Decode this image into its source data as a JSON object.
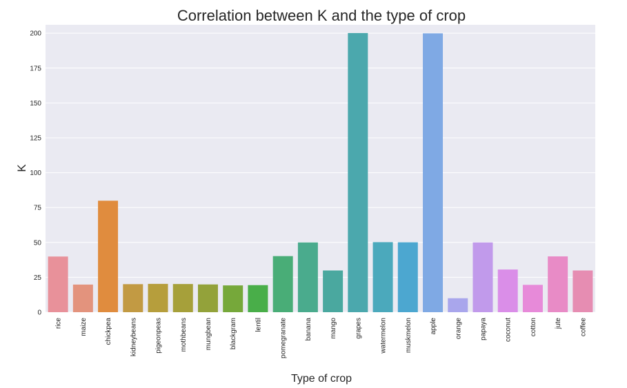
{
  "chart_data": {
    "type": "bar",
    "title": "Correlation between K and the type of crop",
    "xlabel": "Type of crop",
    "ylabel": "K",
    "ylim": [
      0,
      206
    ],
    "yticks": [
      0,
      25,
      50,
      75,
      100,
      125,
      150,
      175,
      200
    ],
    "grid": true,
    "categories": [
      "rice",
      "maize",
      "chickpea",
      "kidneybeans",
      "pigeonpeas",
      "mothbeans",
      "mungbean",
      "blackgram",
      "lentil",
      "pomegranate",
      "banana",
      "mango",
      "grapes",
      "watermelon",
      "muskmelon",
      "apple",
      "orange",
      "papaya",
      "coconut",
      "cotton",
      "jute",
      "coffee"
    ],
    "values": [
      39.9,
      19.8,
      79.9,
      20.1,
      20.3,
      20.2,
      19.9,
      19.2,
      19.4,
      40.2,
      50.0,
      29.9,
      200.1,
      50.2,
      50.1,
      199.9,
      10.0,
      50.0,
      30.6,
      19.6,
      40.0,
      29.9
    ],
    "colors": [
      "#e8919a",
      "#e3937d",
      "#e08c3e",
      "#c29a43",
      "#b69e3c",
      "#a6a03a",
      "#93a23a",
      "#76a83a",
      "#49ae49",
      "#49ad77",
      "#4aab8d",
      "#4aa89f",
      "#4ba8ad",
      "#4ba9bc",
      "#4ca7d0",
      "#7fa9e4",
      "#a9a6ec",
      "#c19aeb",
      "#da8ee8",
      "#e78ad9",
      "#e88bc6",
      "#e68db2"
    ]
  }
}
